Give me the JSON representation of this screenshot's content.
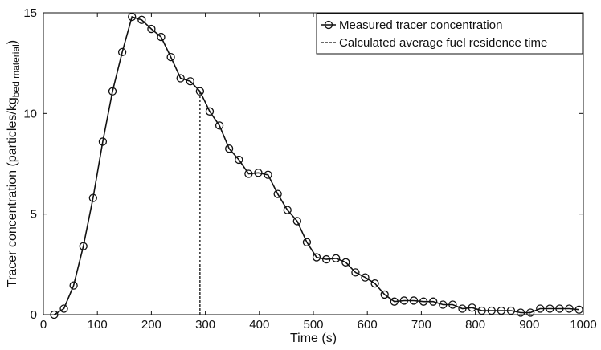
{
  "chart_data": {
    "type": "line",
    "xlabel": "Time (s)",
    "ylabel": {
      "main": "Tracer concentration (particles/kg",
      "subscript": "bed material",
      "close": ")"
    },
    "xlim": [
      0,
      1000
    ],
    "ylim": [
      0,
      15
    ],
    "xticks": [
      "0",
      "100",
      "200",
      "300",
      "400",
      "500",
      "600",
      "700",
      "800",
      "900",
      "1000"
    ],
    "yticks": [
      "0",
      "5",
      "10",
      "15"
    ],
    "grid": false,
    "legend_position": "top-right",
    "series": [
      {
        "name": "Measured tracer concentration",
        "style": "solid-circle-markers",
        "color": "#111111",
        "x": [
          20,
          38,
          56,
          74,
          92,
          110,
          128,
          146,
          164,
          182,
          200,
          218,
          236,
          254,
          272,
          290,
          308,
          326,
          344,
          362,
          380,
          398,
          416,
          434,
          452,
          470,
          488,
          506,
          524,
          542,
          560,
          578,
          596,
          614,
          632,
          650,
          668,
          686,
          704,
          722,
          740,
          758,
          776,
          794,
          812,
          830,
          848,
          866,
          884,
          902,
          920,
          938,
          956,
          974,
          992
        ],
        "y": [
          0.0,
          0.3,
          1.45,
          3.4,
          5.8,
          8.6,
          11.1,
          13.05,
          14.8,
          14.65,
          14.2,
          13.8,
          12.8,
          11.75,
          11.6,
          11.1,
          10.1,
          9.4,
          8.25,
          7.7,
          7.0,
          7.05,
          6.95,
          6.0,
          5.2,
          4.65,
          3.6,
          2.85,
          2.75,
          2.8,
          2.6,
          2.1,
          1.85,
          1.55,
          1.0,
          0.65,
          0.7,
          0.7,
          0.65,
          0.65,
          0.5,
          0.5,
          0.3,
          0.35,
          0.2,
          0.2,
          0.2,
          0.2,
          0.1,
          0.1,
          0.3,
          0.3,
          0.3,
          0.3,
          0.25
        ]
      },
      {
        "name": "Calculated average fuel residence time",
        "style": "dashed-vertical",
        "color": "#111111",
        "x": [
          290,
          290
        ],
        "y": [
          0,
          11.1
        ]
      }
    ]
  }
}
